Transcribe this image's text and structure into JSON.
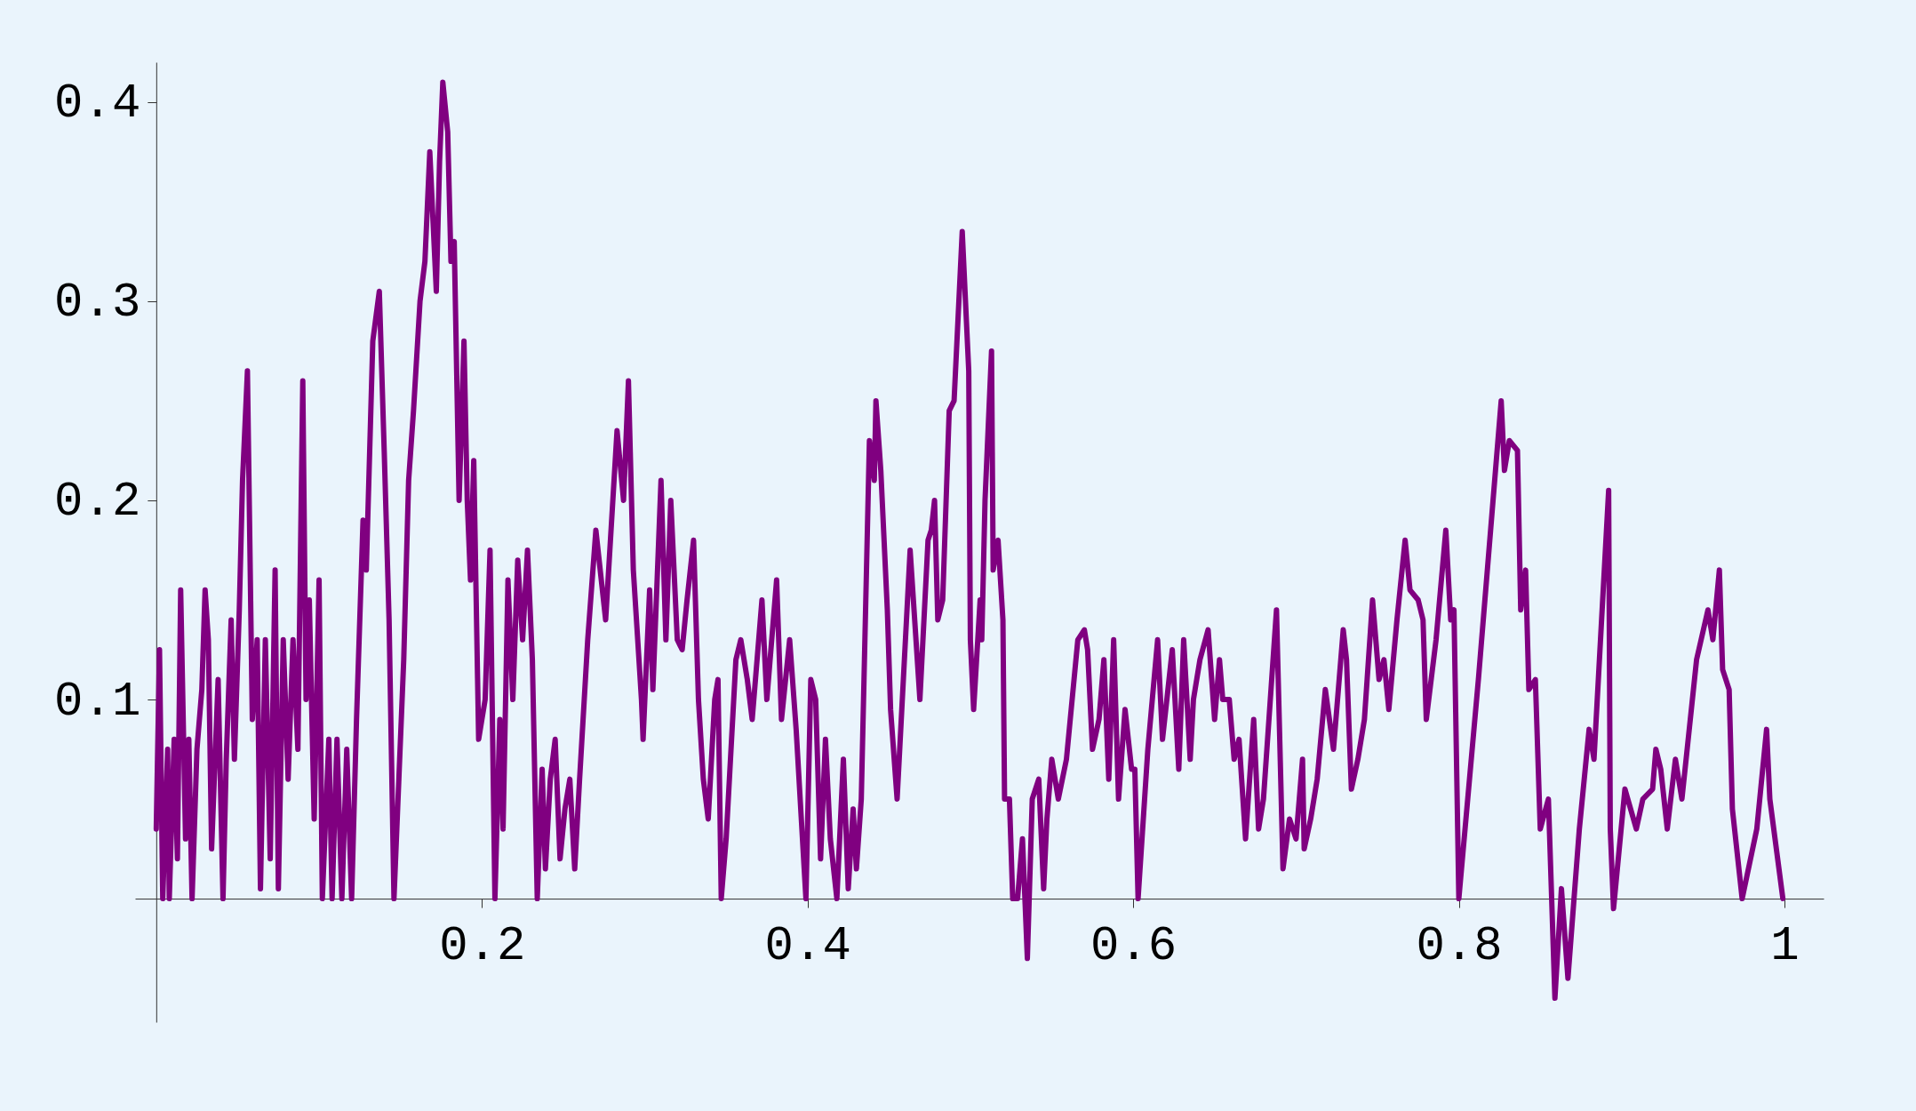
{
  "chart_data": {
    "type": "line",
    "xlim": [
      -0.013,
      1.024
    ],
    "ylim": [
      -0.062,
      0.42
    ],
    "xticks": [
      0.2,
      0.4,
      0.6,
      0.8,
      {
        "value": 1,
        "label": "1"
      }
    ],
    "yticks": [
      0.1,
      0.2,
      0.3,
      0.4
    ],
    "grid": false,
    "legend": false,
    "marker": "none",
    "line_style": "solid",
    "series": [
      {
        "color": "#800080",
        "x": [
          0.0,
          0.002,
          0.004,
          0.007,
          0.008,
          0.011,
          0.013,
          0.015,
          0.018,
          0.02,
          0.022,
          0.025,
          0.028,
          0.03,
          0.032,
          0.034,
          0.038,
          0.041,
          0.043,
          0.046,
          0.048,
          0.051,
          0.053,
          0.056,
          0.059,
          0.062,
          0.064,
          0.067,
          0.07,
          0.073,
          0.075,
          0.078,
          0.081,
          0.084,
          0.087,
          0.09,
          0.092,
          0.094,
          0.097,
          0.1,
          0.102,
          0.106,
          0.108,
          0.111,
          0.114,
          0.117,
          0.12,
          0.123,
          0.127,
          0.129,
          0.133,
          0.137,
          0.14,
          0.143,
          0.146,
          0.149,
          0.152,
          0.155,
          0.158,
          0.162,
          0.165,
          0.168,
          0.172,
          0.174,
          0.176,
          0.179,
          0.181,
          0.183,
          0.186,
          0.189,
          0.191,
          0.193,
          0.195,
          0.198,
          0.202,
          0.205,
          0.208,
          0.211,
          0.213,
          0.216,
          0.219,
          0.222,
          0.225,
          0.228,
          0.231,
          0.234,
          0.237,
          0.239,
          0.242,
          0.245,
          0.248,
          0.251,
          0.254,
          0.257,
          0.26,
          0.265,
          0.27,
          0.276,
          0.283,
          0.287,
          0.29,
          0.293,
          0.298,
          0.299,
          0.303,
          0.305,
          0.31,
          0.313,
          0.316,
          0.32,
          0.323,
          0.326,
          0.33,
          0.333,
          0.336,
          0.339,
          0.343,
          0.345,
          0.347,
          0.35,
          0.356,
          0.359,
          0.363,
          0.366,
          0.372,
          0.375,
          0.381,
          0.384,
          0.389,
          0.393,
          0.399,
          0.402,
          0.405,
          0.408,
          0.411,
          0.414,
          0.418,
          0.422,
          0.425,
          0.428,
          0.43,
          0.433,
          0.438,
          0.441,
          0.442,
          0.445,
          0.449,
          0.451,
          0.455,
          0.463,
          0.469,
          0.474,
          0.476,
          0.478,
          0.48,
          0.483,
          0.487,
          0.49,
          0.495,
          0.499,
          0.5,
          0.502,
          0.506,
          0.507,
          0.509,
          0.513,
          0.514,
          0.517,
          0.52,
          0.521,
          0.524,
          0.526,
          0.529,
          0.532,
          0.535,
          0.538,
          0.542,
          0.545,
          0.547,
          0.55,
          0.554,
          0.559,
          0.566,
          0.57,
          0.572,
          0.575,
          0.579,
          0.582,
          0.585,
          0.588,
          0.591,
          0.595,
          0.599,
          0.601,
          0.603,
          0.609,
          0.615,
          0.618,
          0.624,
          0.628,
          0.631,
          0.635,
          0.637,
          0.641,
          0.646,
          0.65,
          0.653,
          0.655,
          0.659,
          0.662,
          0.665,
          0.669,
          0.674,
          0.677,
          0.68,
          0.688,
          0.692,
          0.696,
          0.7,
          0.704,
          0.705,
          0.709,
          0.713,
          0.718,
          0.723,
          0.729,
          0.731,
          0.734,
          0.738,
          0.742,
          0.747,
          0.751,
          0.754,
          0.757,
          0.762,
          0.767,
          0.77,
          0.775,
          0.778,
          0.78,
          0.786,
          0.792,
          0.795,
          0.797,
          0.8,
          0.812,
          0.826,
          0.828,
          0.831,
          0.836,
          0.838,
          0.841,
          0.843,
          0.847,
          0.85,
          0.855,
          0.859,
          0.863,
          0.867,
          0.874,
          0.88,
          0.883,
          0.892,
          0.893,
          0.895,
          0.902,
          0.909,
          0.913,
          0.919,
          0.921,
          0.924,
          0.928,
          0.933,
          0.937,
          0.946,
          0.953,
          0.956,
          0.96,
          0.962,
          0.966,
          0.968,
          0.974,
          0.983,
          0.989,
          0.991,
          0.999
        ],
        "values": [
          0.035,
          0.125,
          0.0,
          0.075,
          0.0,
          0.08,
          0.02,
          0.155,
          0.03,
          0.08,
          0.0,
          0.075,
          0.105,
          0.155,
          0.13,
          0.025,
          0.11,
          0.0,
          0.07,
          0.14,
          0.07,
          0.145,
          0.21,
          0.265,
          0.09,
          0.13,
          0.005,
          0.13,
          0.02,
          0.165,
          0.005,
          0.13,
          0.06,
          0.13,
          0.075,
          0.26,
          0.1,
          0.15,
          0.04,
          0.16,
          0.0,
          0.08,
          0.0,
          0.08,
          0.0,
          0.075,
          0.0,
          0.09,
          0.19,
          0.165,
          0.28,
          0.305,
          0.225,
          0.14,
          0.0,
          0.06,
          0.12,
          0.21,
          0.245,
          0.3,
          0.32,
          0.375,
          0.305,
          0.37,
          0.41,
          0.385,
          0.32,
          0.33,
          0.2,
          0.28,
          0.2,
          0.16,
          0.22,
          0.08,
          0.1,
          0.175,
          0.0,
          0.09,
          0.035,
          0.16,
          0.1,
          0.17,
          0.13,
          0.175,
          0.12,
          0.0,
          0.065,
          0.015,
          0.06,
          0.08,
          0.02,
          0.045,
          0.06,
          0.015,
          0.06,
          0.13,
          0.185,
          0.14,
          0.235,
          0.2,
          0.26,
          0.165,
          0.1,
          0.08,
          0.155,
          0.105,
          0.21,
          0.13,
          0.2,
          0.13,
          0.125,
          0.15,
          0.18,
          0.1,
          0.06,
          0.04,
          0.1,
          0.11,
          0.0,
          0.03,
          0.12,
          0.13,
          0.11,
          0.09,
          0.15,
          0.1,
          0.16,
          0.09,
          0.13,
          0.085,
          0.0,
          0.11,
          0.1,
          0.02,
          0.08,
          0.03,
          0.0,
          0.07,
          0.005,
          0.045,
          0.015,
          0.05,
          0.23,
          0.21,
          0.25,
          0.215,
          0.145,
          0.095,
          0.05,
          0.175,
          0.1,
          0.18,
          0.185,
          0.2,
          0.14,
          0.15,
          0.245,
          0.25,
          0.335,
          0.265,
          0.13,
          0.095,
          0.15,
          0.13,
          0.2,
          0.275,
          0.165,
          0.18,
          0.14,
          0.05,
          0.05,
          0.0,
          0.0,
          0.03,
          -0.03,
          0.05,
          0.06,
          0.005,
          0.04,
          0.07,
          0.05,
          0.07,
          0.13,
          0.135,
          0.125,
          0.075,
          0.09,
          0.12,
          0.06,
          0.13,
          0.05,
          0.095,
          0.065,
          0.065,
          0.0,
          0.075,
          0.13,
          0.08,
          0.125,
          0.065,
          0.13,
          0.07,
          0.1,
          0.12,
          0.135,
          0.09,
          0.12,
          0.1,
          0.1,
          0.07,
          0.08,
          0.03,
          0.09,
          0.035,
          0.05,
          0.145,
          0.015,
          0.04,
          0.03,
          0.07,
          0.025,
          0.04,
          0.06,
          0.105,
          0.075,
          0.135,
          0.12,
          0.055,
          0.07,
          0.09,
          0.15,
          0.11,
          0.12,
          0.095,
          0.14,
          0.18,
          0.155,
          0.15,
          0.14,
          0.09,
          0.13,
          0.185,
          0.14,
          0.145,
          0.0,
          0.11,
          0.25,
          0.215,
          0.23,
          0.225,
          0.145,
          0.165,
          0.105,
          0.11,
          0.035,
          0.05,
          -0.05,
          0.005,
          -0.04,
          0.035,
          0.085,
          0.07,
          0.205,
          0.035,
          -0.005,
          0.055,
          0.035,
          0.05,
          0.055,
          0.075,
          0.065,
          0.035,
          0.07,
          0.05,
          0.12,
          0.145,
          0.13,
          0.165,
          0.115,
          0.105,
          0.045,
          0.0,
          0.035,
          0.085,
          0.05,
          0.0
        ]
      }
    ]
  }
}
